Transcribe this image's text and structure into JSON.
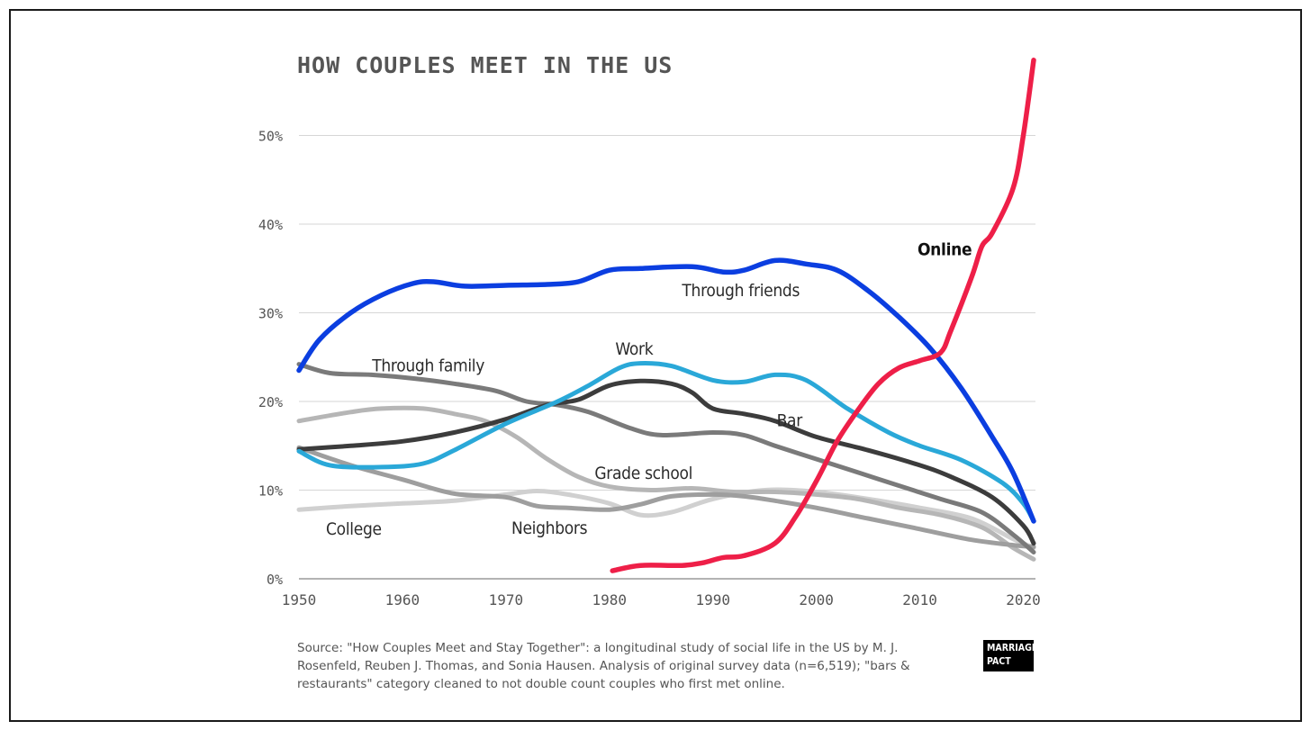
{
  "chart_data": {
    "type": "line",
    "title": "HOW COUPLES MEET IN THE US",
    "xlabel": "",
    "ylabel": "",
    "xlim": [
      1950,
      2021
    ],
    "ylim": [
      0,
      60
    ],
    "x_ticks": [
      1950,
      1960,
      1970,
      1980,
      1990,
      2000,
      2010,
      2020
    ],
    "y_ticks": [
      0,
      10,
      20,
      30,
      40,
      50
    ],
    "y_tick_labels": [
      "0%",
      "10%",
      "20%",
      "30%",
      "40%",
      "50%"
    ],
    "grid": "horizontal",
    "series": [
      {
        "name": "College",
        "color": "#d0d0d0",
        "width": 5,
        "label": {
          "x": 1955.3,
          "y": 5.7,
          "bold": false
        },
        "points": [
          [
            1950,
            7.8
          ],
          [
            1955,
            8.2
          ],
          [
            1960,
            8.5
          ],
          [
            1965,
            8.8
          ],
          [
            1970,
            9.5
          ],
          [
            1973,
            9.9
          ],
          [
            1976,
            9.5
          ],
          [
            1980,
            8.5
          ],
          [
            1983,
            7.2
          ],
          [
            1986,
            7.5
          ],
          [
            1990,
            9
          ],
          [
            1995,
            10
          ],
          [
            2000,
            9.8
          ],
          [
            2005,
            9
          ],
          [
            2010,
            8
          ],
          [
            2015,
            6.8
          ],
          [
            2019,
            4.5
          ],
          [
            2021,
            3.5
          ]
        ]
      },
      {
        "name": "Grade school",
        "color": "#b6b6b6",
        "width": 5,
        "label": {
          "x": 1983.3,
          "y": 12,
          "bold": false
        },
        "points": [
          [
            1950,
            17.8
          ],
          [
            1955,
            18.8
          ],
          [
            1958,
            19.2
          ],
          [
            1962,
            19.2
          ],
          [
            1965,
            18.6
          ],
          [
            1968,
            17.8
          ],
          [
            1971,
            16
          ],
          [
            1974,
            13.5
          ],
          [
            1977,
            11.5
          ],
          [
            1980,
            10.4
          ],
          [
            1984,
            10
          ],
          [
            1988,
            10.2
          ],
          [
            1992,
            9.8
          ],
          [
            1996,
            9.8
          ],
          [
            2000,
            9.5
          ],
          [
            2004,
            9
          ],
          [
            2008,
            8
          ],
          [
            2012,
            7.2
          ],
          [
            2016,
            5.8
          ],
          [
            2019,
            3.5
          ],
          [
            2021,
            2.2
          ]
        ]
      },
      {
        "name": "Neighbors",
        "color": "#9e9e9e",
        "width": 5,
        "label": {
          "x": 1974.2,
          "y": 5.8,
          "bold": false
        },
        "points": [
          [
            1950,
            14.8
          ],
          [
            1955,
            12.8
          ],
          [
            1960,
            11.2
          ],
          [
            1965,
            9.6
          ],
          [
            1970,
            9.2
          ],
          [
            1973,
            8.2
          ],
          [
            1976,
            8
          ],
          [
            1980,
            7.8
          ],
          [
            1983,
            8.4
          ],
          [
            1986,
            9.3
          ],
          [
            1990,
            9.5
          ],
          [
            1993,
            9.3
          ],
          [
            1996,
            8.8
          ],
          [
            2000,
            8
          ],
          [
            2005,
            6.8
          ],
          [
            2010,
            5.6
          ],
          [
            2015,
            4.4
          ],
          [
            2019,
            3.8
          ],
          [
            2021,
            3.6
          ]
        ]
      },
      {
        "name": "Through family",
        "color": "#7a7a7a",
        "width": 5,
        "label": {
          "x": 1962.5,
          "y": 24.1,
          "bold": false
        },
        "points": [
          [
            1950,
            24.2
          ],
          [
            1953,
            23.2
          ],
          [
            1957,
            23
          ],
          [
            1961,
            22.6
          ],
          [
            1965,
            22
          ],
          [
            1969,
            21.2
          ],
          [
            1972,
            20
          ],
          [
            1975,
            19.6
          ],
          [
            1978,
            18.8
          ],
          [
            1982,
            17
          ],
          [
            1985,
            16.2
          ],
          [
            1990,
            16.5
          ],
          [
            1993,
            16.2
          ],
          [
            1996,
            15
          ],
          [
            2000,
            13.5
          ],
          [
            2004,
            12
          ],
          [
            2008,
            10.5
          ],
          [
            2012,
            9
          ],
          [
            2016,
            7.5
          ],
          [
            2019,
            5
          ],
          [
            2021,
            3
          ]
        ]
      },
      {
        "name": "Bar",
        "color": "#3c3c3c",
        "width": 5,
        "label": {
          "x": 1997.4,
          "y": 17.9,
          "bold": false
        },
        "points": [
          [
            1950,
            14.6
          ],
          [
            1955,
            15
          ],
          [
            1960,
            15.5
          ],
          [
            1965,
            16.5
          ],
          [
            1970,
            18
          ],
          [
            1974,
            19.6
          ],
          [
            1977,
            20.2
          ],
          [
            1980,
            21.8
          ],
          [
            1983,
            22.3
          ],
          [
            1986,
            22
          ],
          [
            1988,
            21
          ],
          [
            1990,
            19.2
          ],
          [
            1993,
            18.6
          ],
          [
            1996,
            17.8
          ],
          [
            2000,
            16
          ],
          [
            2005,
            14.5
          ],
          [
            2010,
            12.8
          ],
          [
            2013,
            11.5
          ],
          [
            2017,
            9.2
          ],
          [
            2020,
            6
          ],
          [
            2021,
            4
          ]
        ]
      },
      {
        "name": "Work",
        "color": "#2aa8d8",
        "width": 5,
        "label": {
          "x": 1982.4,
          "y": 26,
          "bold": false
        },
        "points": [
          [
            1950,
            14.4
          ],
          [
            1953,
            12.8
          ],
          [
            1958,
            12.6
          ],
          [
            1962,
            13
          ],
          [
            1965,
            14.5
          ],
          [
            1970,
            17.5
          ],
          [
            1975,
            20
          ],
          [
            1978,
            21.8
          ],
          [
            1981,
            23.8
          ],
          [
            1983,
            24.3
          ],
          [
            1986,
            24
          ],
          [
            1990,
            22.4
          ],
          [
            1993,
            22.2
          ],
          [
            1996,
            23
          ],
          [
            1999,
            22.4
          ],
          [
            2003,
            19.2
          ],
          [
            2007,
            16.5
          ],
          [
            2010,
            15
          ],
          [
            2014,
            13.4
          ],
          [
            2018,
            10.8
          ],
          [
            2020,
            8.5
          ],
          [
            2021,
            6.5
          ]
        ]
      },
      {
        "name": "Through friends",
        "color": "#0b3ee0",
        "width": 5.5,
        "label": {
          "x": 1992.7,
          "y": 32.6,
          "bold": false
        },
        "points": [
          [
            1950,
            23.5
          ],
          [
            1952,
            27
          ],
          [
            1955,
            30
          ],
          [
            1958,
            32
          ],
          [
            1961,
            33.3
          ],
          [
            1963,
            33.5
          ],
          [
            1966,
            33
          ],
          [
            1970,
            33.1
          ],
          [
            1974,
            33.2
          ],
          [
            1977,
            33.5
          ],
          [
            1980,
            34.8
          ],
          [
            1983,
            35
          ],
          [
            1988,
            35.2
          ],
          [
            1991,
            34.6
          ],
          [
            1993,
            34.8
          ],
          [
            1996,
            35.9
          ],
          [
            1999,
            35.5
          ],
          [
            2002,
            34.8
          ],
          [
            2005,
            32.5
          ],
          [
            2008,
            29.5
          ],
          [
            2011,
            26
          ],
          [
            2014,
            21.5
          ],
          [
            2017,
            16
          ],
          [
            2019,
            12
          ],
          [
            2021,
            6.5
          ]
        ]
      },
      {
        "name": "Online",
        "color": "#ee1f48",
        "width": 5.5,
        "label": {
          "x": 2012.4,
          "y": 37.2,
          "bold": true
        },
        "points": [
          [
            1980.3,
            0.9
          ],
          [
            1983,
            1.5
          ],
          [
            1987,
            1.5
          ],
          [
            1989,
            1.8
          ],
          [
            1991,
            2.4
          ],
          [
            1993,
            2.6
          ],
          [
            1996,
            4
          ],
          [
            1998,
            7
          ],
          [
            2000,
            11
          ],
          [
            2002,
            15.5
          ],
          [
            2004,
            19
          ],
          [
            2006,
            22
          ],
          [
            2008,
            23.8
          ],
          [
            2010,
            24.6
          ],
          [
            2012,
            25.5
          ],
          [
            2013,
            28
          ],
          [
            2015,
            34
          ],
          [
            2016,
            37.5
          ],
          [
            2017,
            39
          ],
          [
            2019,
            44
          ],
          [
            2020,
            50
          ],
          [
            2021,
            58.5
          ]
        ]
      }
    ]
  },
  "source_text": "Source: \"How Couples Meet and Stay Together\": a longitudinal study of social life in the US by M. J. Rosenfeld, Reuben J. Thomas, and Sonia Hausen. Analysis of original survey data (n=6,519); \"bars & restaurants\" category cleaned to not double count couples who first met online.",
  "logo": {
    "line1": "MARRIAGE",
    "line2": "PACT"
  }
}
